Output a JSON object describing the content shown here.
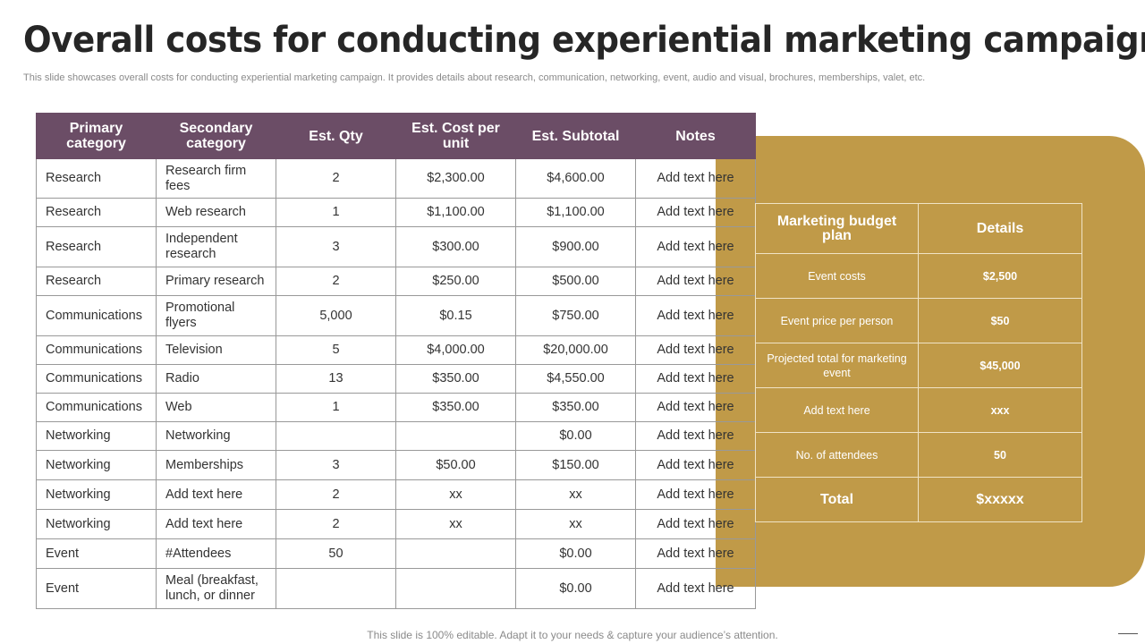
{
  "header": {
    "title": "Overall costs for conducting experiential marketing campaign",
    "subtitle": "This slide showcases overall costs for conducting experiential marketing campaign. It provides details about research, communication, networking, event, audio and visual, brochures, memberships, valet, etc."
  },
  "table": {
    "headers": [
      "Primary category",
      "Secondary category",
      "Est. Qty",
      "Est. Cost per unit",
      "Est. Subtotal",
      "Notes"
    ],
    "rows": [
      [
        "Research",
        "Research firm fees",
        "2",
        "$2,300.00",
        "$4,600.00",
        "Add text here"
      ],
      [
        "Research",
        "Web research",
        "1",
        "$1,100.00",
        "$1,100.00",
        "Add text here"
      ],
      [
        "Research",
        "Independent research",
        "3",
        "$300.00",
        "$900.00",
        "Add text here"
      ],
      [
        "Research",
        "Primary research",
        "2",
        "$250.00",
        "$500.00",
        "Add text here"
      ],
      [
        "Communications",
        "Promotional flyers",
        "5,000",
        "$0.15",
        "$750.00",
        "Add text here"
      ],
      [
        "Communications",
        "Television",
        "5",
        "$4,000.00",
        "$20,000.00",
        "Add text here"
      ],
      [
        "Communications",
        "Radio",
        "13",
        "$350.00",
        "$4,550.00",
        "Add text here"
      ],
      [
        "Communications",
        "Web",
        "1",
        "$350.00",
        "$350.00",
        "Add text here"
      ],
      [
        "Networking",
        "Networking",
        null,
        null,
        "$0.00",
        "Add text here"
      ],
      [
        "Networking",
        "Memberships",
        "3",
        "$50.00",
        "$150.00",
        "Add text here"
      ],
      [
        "Networking",
        "Add text here",
        "2",
        "xx",
        "xx",
        "Add text here"
      ],
      [
        "Networking",
        "Add text here",
        "2",
        "xx",
        "xx",
        "Add text here"
      ],
      [
        "Event",
        "#Attendees",
        "50",
        null,
        "$0.00",
        "Add text here"
      ],
      [
        "Event",
        "Meal (breakfast, lunch, or dinner",
        null,
        null,
        "$0.00",
        "Add text here"
      ]
    ]
  },
  "budget": {
    "headers": [
      "Marketing budget plan",
      "Details"
    ],
    "rows": [
      [
        "Event costs",
        "$2,500"
      ],
      [
        "Event price per person",
        "$50"
      ],
      [
        "Projected total for marketing event",
        "$45,000"
      ],
      [
        "Add text here",
        "xxx"
      ],
      [
        "No. of attendees",
        "50"
      ],
      [
        "Total",
        "$xxxxx"
      ]
    ]
  },
  "footer": "This slide is 100% editable. Adapt it to your needs & capture your audience’s attention."
}
